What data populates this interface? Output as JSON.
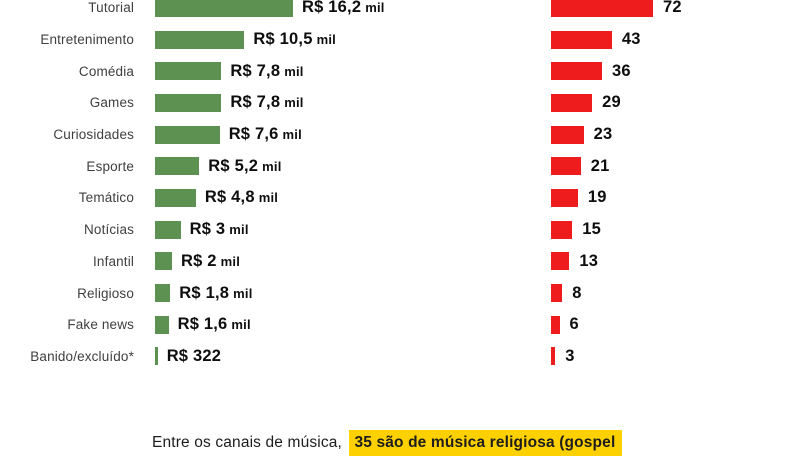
{
  "colors": {
    "green": "#5d9152",
    "red": "#ee1c1c",
    "highlight_bg": "#fdd000"
  },
  "rows": [
    {
      "label": "Tutorial",
      "value": "R$ 16,2",
      "unit": "mil",
      "revenue_mil": 16.2,
      "count": 72
    },
    {
      "label": "Entretenimento",
      "value": "R$ 10,5",
      "unit": "mil",
      "revenue_mil": 10.5,
      "count": 43
    },
    {
      "label": "Comédia",
      "value": "R$ 7,8",
      "unit": "mil",
      "revenue_mil": 7.8,
      "count": 36
    },
    {
      "label": "Games",
      "value": "R$ 7,8",
      "unit": "mil",
      "revenue_mil": 7.8,
      "count": 29
    },
    {
      "label": "Curiosidades",
      "value": "R$ 7,6",
      "unit": "mil",
      "revenue_mil": 7.6,
      "count": 23
    },
    {
      "label": "Esporte",
      "value": "R$ 5,2",
      "unit": "mil",
      "revenue_mil": 5.2,
      "count": 21
    },
    {
      "label": "Temático",
      "value": "R$ 4,8",
      "unit": "mil",
      "revenue_mil": 4.8,
      "count": 19
    },
    {
      "label": "Notícias",
      "value": "R$ 3",
      "unit": "mil",
      "revenue_mil": 3,
      "count": 15
    },
    {
      "label": "Infantil",
      "value": "R$ 2",
      "unit": "mil",
      "revenue_mil": 2,
      "count": 13
    },
    {
      "label": "Religioso",
      "value": "R$ 1,8",
      "unit": "mil",
      "revenue_mil": 1.8,
      "count": 8
    },
    {
      "label": "Fake news",
      "value": "R$ 1,6",
      "unit": "mil",
      "revenue_mil": 1.6,
      "count": 6
    },
    {
      "label": "Banido/excluído*",
      "value": "R$ 322",
      "unit": "",
      "revenue_mil": 0.322,
      "count": 3
    }
  ],
  "caption": {
    "prefix": "Entre os canais de música, ",
    "highlight": "35 são de música religiosa (gospel"
  },
  "chart_data": {
    "type": "bar",
    "orientation": "horizontal",
    "categories": [
      "Tutorial",
      "Entretenimento",
      "Comédia",
      "Games",
      "Curiosidades",
      "Esporte",
      "Temático",
      "Notícias",
      "Infantil",
      "Religioso",
      "Fake news",
      "Banido/excluído*"
    ],
    "series": [
      {
        "name": "R$ mil",
        "color": "#5d9152",
        "values": [
          16.2,
          10.5,
          7.8,
          7.8,
          7.6,
          5.2,
          4.8,
          3,
          2,
          1.8,
          1.6,
          0.322
        ],
        "value_labels": [
          "R$ 16,2 mil",
          "R$ 10,5 mil",
          "R$ 7,8 mil",
          "R$ 7,8 mil",
          "R$ 7,6 mil",
          "R$ 5,2 mil",
          "R$ 4,8 mil",
          "R$ 3 mil",
          "R$ 2 mil",
          "R$ 1,8 mil",
          "R$ 1,6 mil",
          "R$ 322"
        ]
      },
      {
        "name": "count",
        "color": "#ee1c1c",
        "values": [
          72,
          43,
          36,
          29,
          23,
          21,
          19,
          15,
          13,
          8,
          6,
          3
        ]
      }
    ],
    "legend": false,
    "grid": false,
    "axes_visible": false
  }
}
